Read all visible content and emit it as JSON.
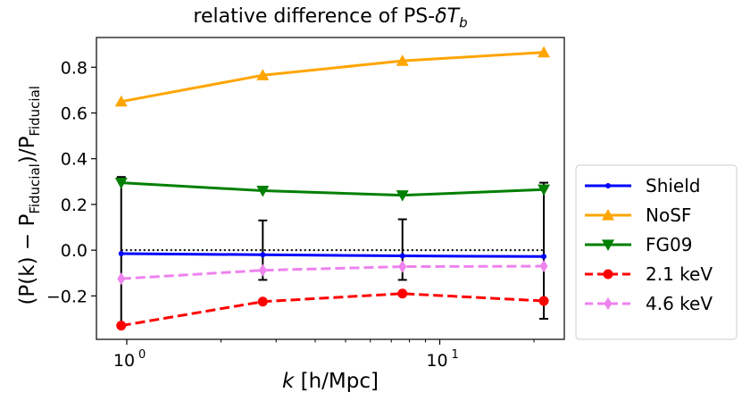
{
  "chart_data": {
    "type": "line",
    "title_prefix": "relative difference of PS-",
    "title_symbol": "δT",
    "title_sub": "b",
    "xlabel_var": "k",
    "xlabel_units": "[h/Mpc]",
    "ylabel_text": "(P(k) − P",
    "ylabel_sub1": "Fiducial",
    "ylabel_mid": ")/P",
    "ylabel_sub2": "Fiducial",
    "x_scale": "log",
    "xlim": [
      0.8,
      25
    ],
    "ylim": [
      -0.39,
      0.93
    ],
    "x": [
      0.96,
      2.72,
      7.6,
      21.5
    ],
    "x_ticks": [
      {
        "value": 1,
        "label": "10",
        "exp": "0"
      },
      {
        "value": 10,
        "label": "10",
        "exp": "1"
      }
    ],
    "y_ticks": [
      -0.2,
      0.0,
      0.2,
      0.4,
      0.6,
      0.8
    ],
    "y_tick_labels": [
      "−0.2",
      "0.0",
      "0.2",
      "0.4",
      "0.6",
      "0.8"
    ],
    "reference_line": 0.0,
    "legend_position": "outside-right",
    "series": [
      {
        "name": "Shield",
        "values": [
          -0.015,
          -0.02,
          -0.025,
          -0.028
        ],
        "color": "#0000ff",
        "marker": "dot",
        "dashed": false
      },
      {
        "name": "NoSF",
        "values": [
          0.65,
          0.765,
          0.828,
          0.865
        ],
        "color": "#ffa500",
        "marker": "triangle-up",
        "dashed": false
      },
      {
        "name": "FG09",
        "values": [
          0.295,
          0.26,
          0.24,
          0.265
        ],
        "color": "#008000",
        "marker": "triangle-down",
        "dashed": false
      },
      {
        "name": "2.1 keV",
        "values": [
          -0.33,
          -0.225,
          -0.19,
          -0.222
        ],
        "color": "#ff0000",
        "marker": "circle",
        "dashed": true
      },
      {
        "name": "4.6 keV",
        "values": [
          -0.125,
          -0.088,
          -0.072,
          -0.07
        ],
        "color": "#ee82ee",
        "marker": "diamond",
        "dashed": true
      }
    ],
    "error_bars": [
      {
        "x": 0.96,
        "low": -0.33,
        "high": 0.32
      },
      {
        "x": 2.72,
        "low": -0.13,
        "high": 0.13
      },
      {
        "x": 7.6,
        "low": -0.13,
        "high": 0.135
      },
      {
        "x": 21.5,
        "low": -0.3,
        "high": 0.295
      }
    ]
  }
}
